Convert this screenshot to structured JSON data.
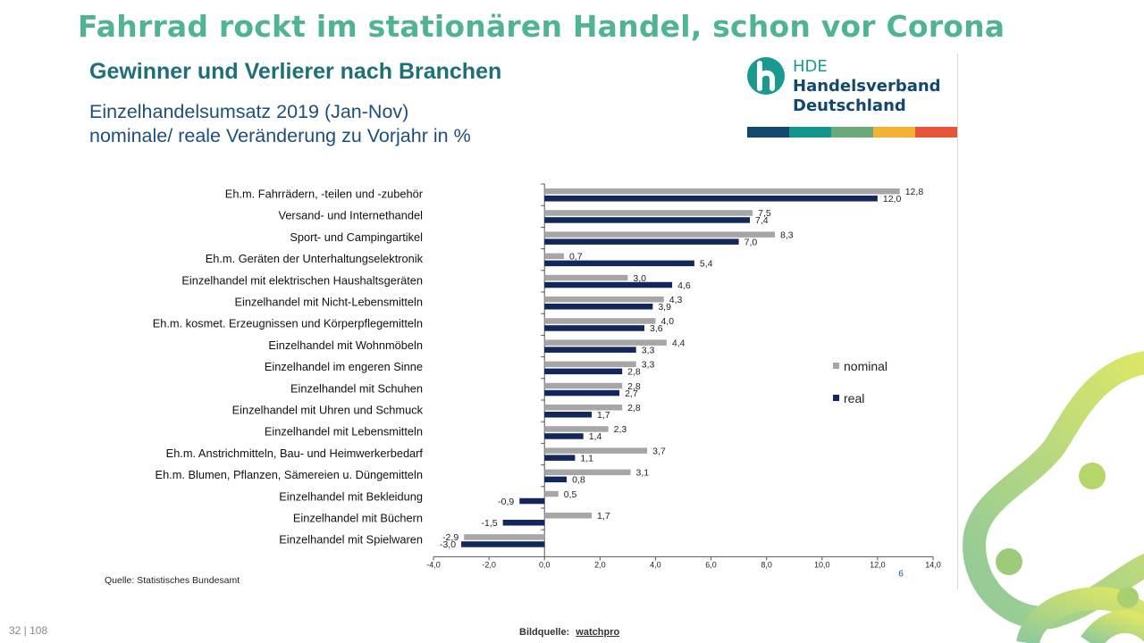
{
  "headline": "Fahrrad rockt im stationären Handel, schon vor Corona",
  "chart_title": "Gewinner und Verlierer nach Branchen",
  "chart_subtitle_lines": [
    "Einzelhandelsumsatz 2019 (Jan-Nov)",
    "nominale/ reale Veränderung zu Vorjahr in %"
  ],
  "logo": {
    "abbr": "HDE",
    "line1": "Handelsverband",
    "line2": "Deutschland",
    "stripe_colors": [
      "#12476e",
      "#12958c",
      "#6aa97a",
      "#f4b233",
      "#e6553a"
    ]
  },
  "source_note": "Quelle: Statistisches Bundesamt",
  "page_number": "32 | 108",
  "image_source": {
    "label": "Bildquelle:",
    "link": "watchpro"
  },
  "colors": {
    "nominal": "#a6a6a6",
    "real": "#12275e",
    "headline": "#4fb394",
    "title": "#1d6f7a"
  },
  "chart_data": {
    "type": "bar",
    "orientation": "horizontal",
    "categories": [
      "Eh.m. Fahrrädern, -teilen und -zubehör",
      "Versand- und Internethandel",
      "Sport- und Campingartikel",
      "Eh.m. Geräten der Unterhaltungselektronik",
      "Einzelhandel mit elektrischen Haushaltsgeräten",
      "Einzelhandel mit Nicht-Lebensmitteln",
      "Eh.m. kosmet. Erzeugnissen und Körperpflegemitteln",
      "Einzelhandel mit Wohnmöbeln",
      "Einzelhandel im engeren Sinne",
      "Einzelhandel mit Schuhen",
      "Einzelhandel mit Uhren und Schmuck",
      "Einzelhandel mit Lebensmitteln",
      "Eh.m. Anstrichmitteln, Bau- und Heimwerkerbedarf",
      "Eh.m. Blumen, Pflanzen, Sämereien u. Düngemitteln",
      "Einzelhandel mit Bekleidung",
      "Einzelhandel mit Büchern",
      "Einzelhandel mit Spielwaren"
    ],
    "series": [
      {
        "name": "nominal",
        "values": [
          12.8,
          7.5,
          8.3,
          0.7,
          3.0,
          4.3,
          4.0,
          4.4,
          3.3,
          2.8,
          2.8,
          2.3,
          3.7,
          3.1,
          0.5,
          1.7,
          -2.9
        ]
      },
      {
        "name": "real",
        "values": [
          12.0,
          7.4,
          7.0,
          5.4,
          4.6,
          3.9,
          3.6,
          3.3,
          2.8,
          2.7,
          1.7,
          1.4,
          1.1,
          0.8,
          -0.9,
          -1.5,
          -3.0
        ]
      }
    ],
    "xlim": [
      -4.0,
      14.0
    ],
    "x_ticks": [
      "-4,0",
      "-2,0",
      "0,0",
      "2,0",
      "4,0",
      "6,0",
      "8,0",
      "10,0",
      "12,0",
      "14,0"
    ],
    "decimal_separator": ",",
    "legend_position": "right",
    "annotation": "6",
    "grid": false
  }
}
